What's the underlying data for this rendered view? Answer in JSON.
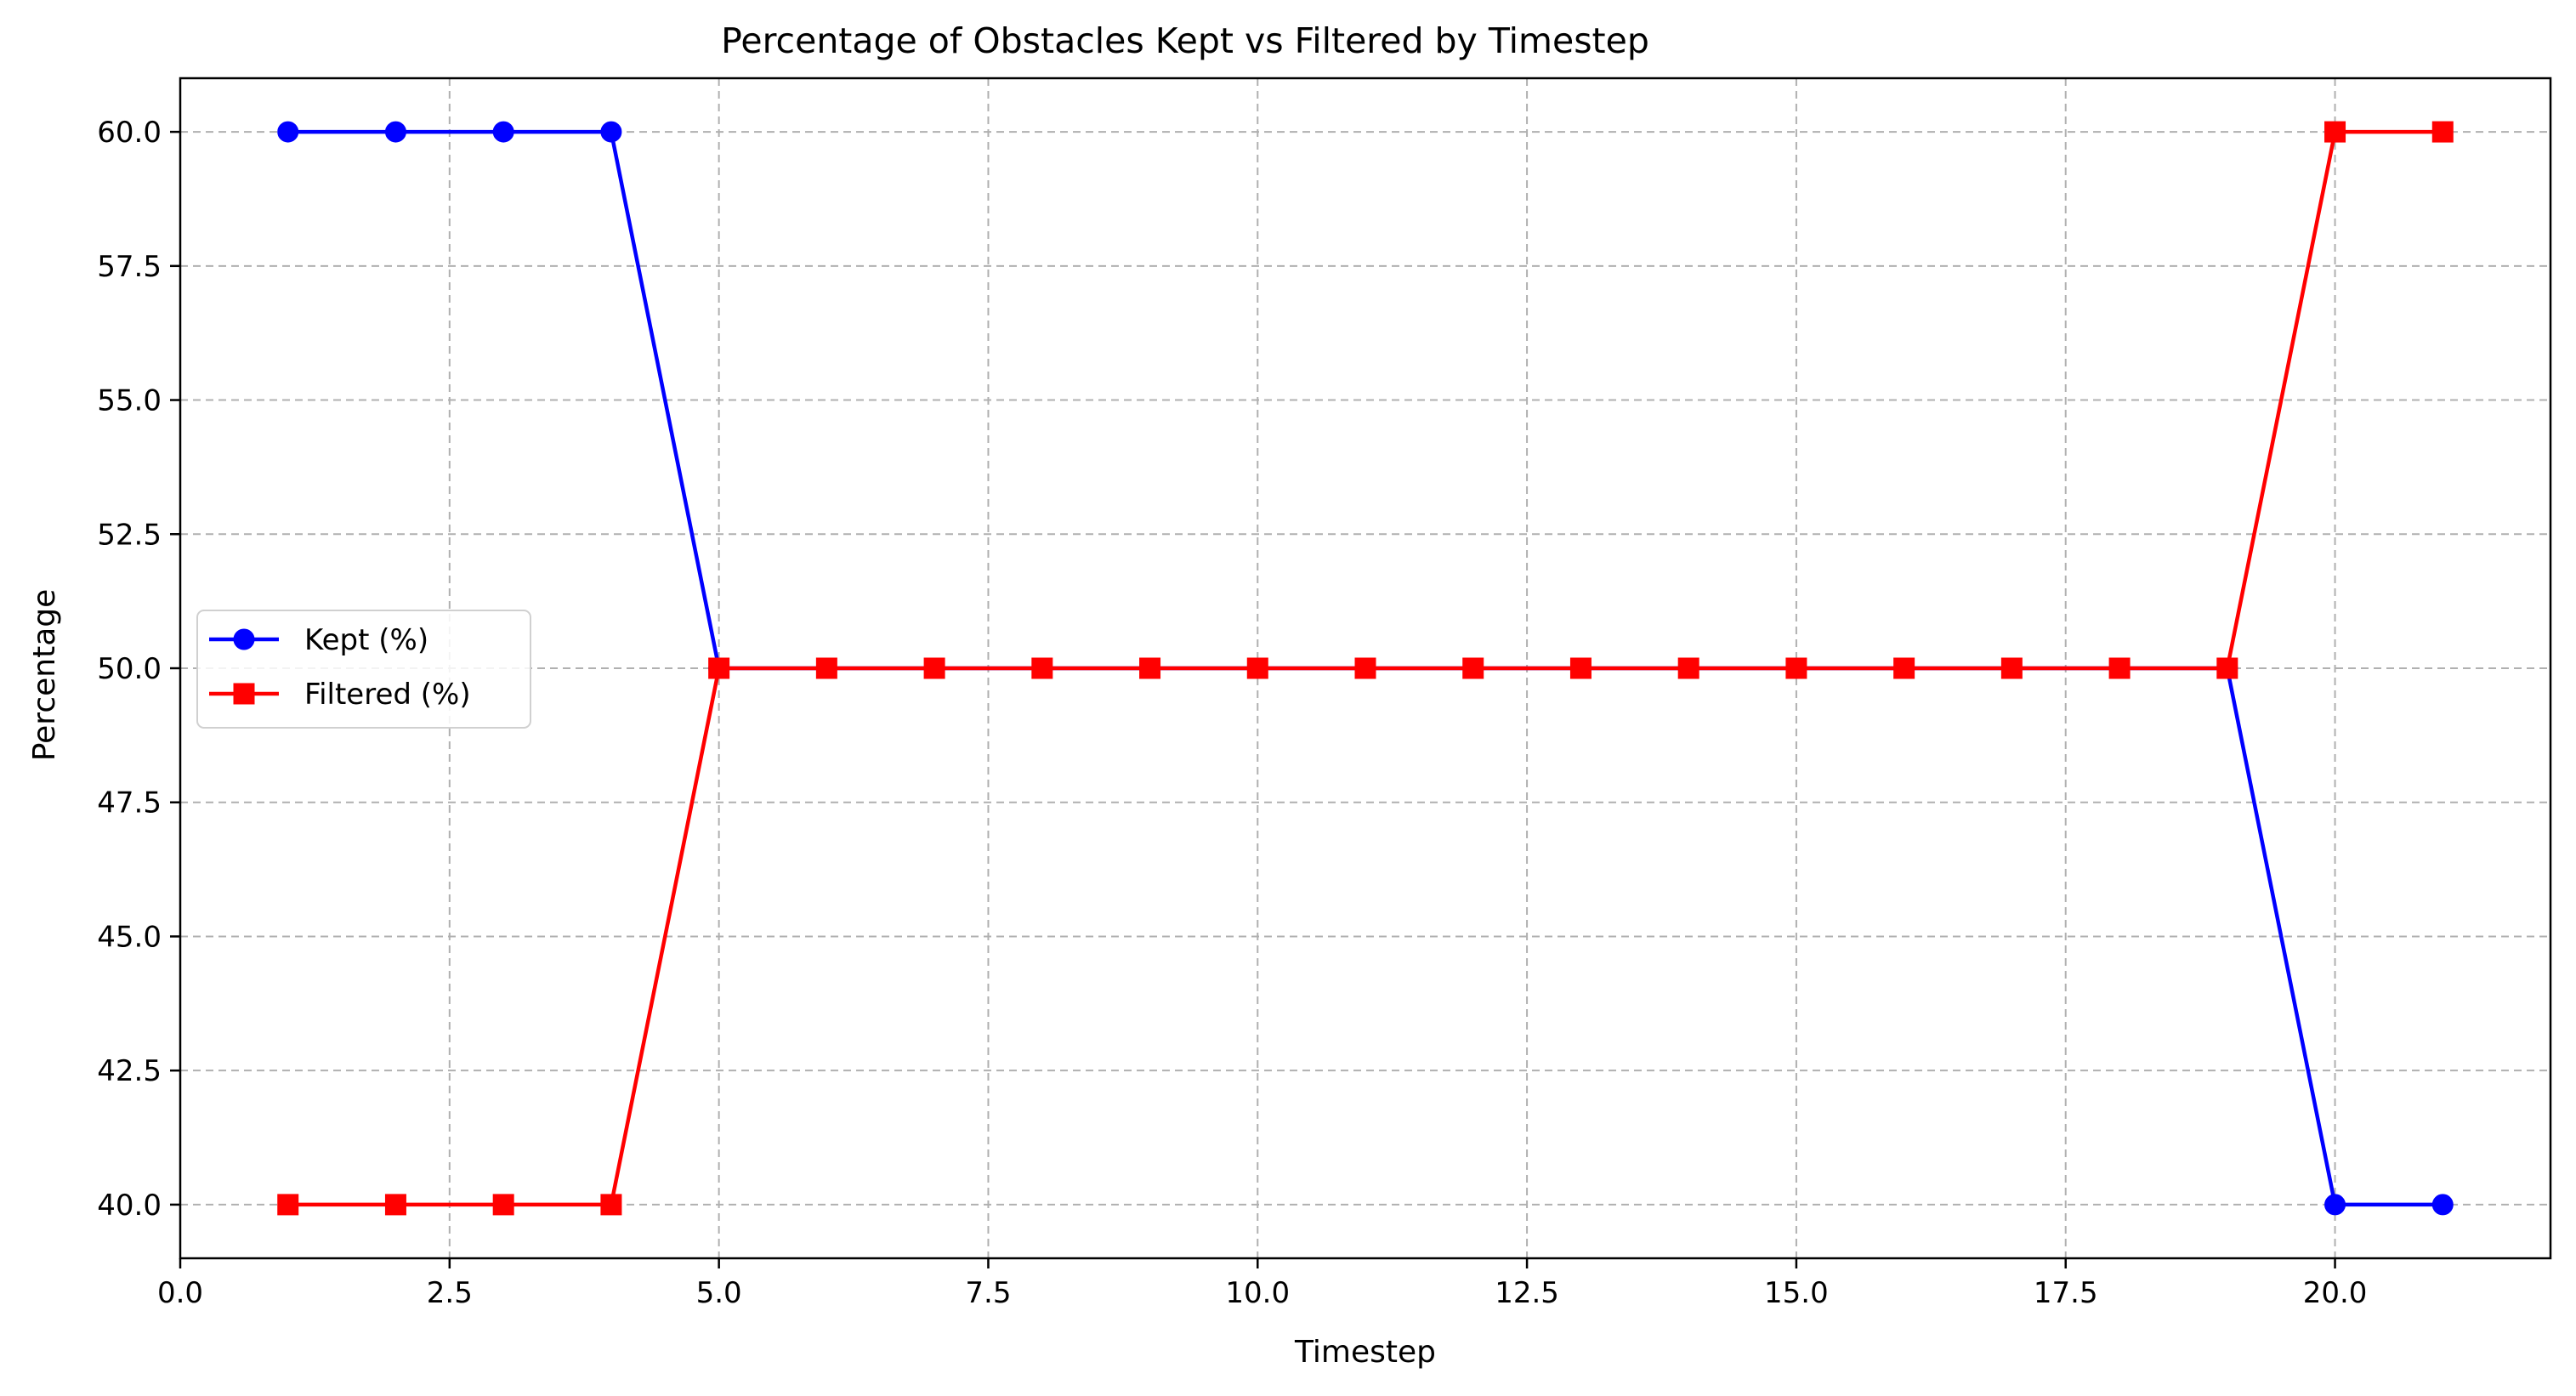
{
  "chart_data": {
    "type": "line",
    "title": "Percentage of Obstacles Kept vs Filtered by Timestep",
    "xlabel": "Timestep",
    "ylabel": "Percentage",
    "xlim": [
      0,
      22
    ],
    "ylim": [
      39,
      61
    ],
    "xticks": [
      0.0,
      2.5,
      5.0,
      7.5,
      10.0,
      12.5,
      15.0,
      17.5,
      20.0
    ],
    "yticks": [
      40.0,
      42.5,
      45.0,
      47.5,
      50.0,
      52.5,
      55.0,
      57.5,
      60.0
    ],
    "grid": true,
    "legend_position": "center-left",
    "x": [
      1,
      2,
      3,
      4,
      5,
      6,
      7,
      8,
      9,
      10,
      11,
      12,
      13,
      14,
      15,
      16,
      17,
      18,
      19,
      20,
      21
    ],
    "series": [
      {
        "name": "Kept (%)",
        "color": "#0000ff",
        "marker": "circle",
        "values": [
          60,
          60,
          60,
          60,
          50,
          50,
          50,
          50,
          50,
          50,
          50,
          50,
          50,
          50,
          50,
          50,
          50,
          50,
          50,
          40,
          40
        ]
      },
      {
        "name": "Filtered (%)",
        "color": "#ff0000",
        "marker": "square",
        "values": [
          40,
          40,
          40,
          40,
          50,
          50,
          50,
          50,
          50,
          50,
          50,
          50,
          50,
          50,
          50,
          50,
          50,
          50,
          50,
          60,
          60
        ]
      }
    ]
  }
}
